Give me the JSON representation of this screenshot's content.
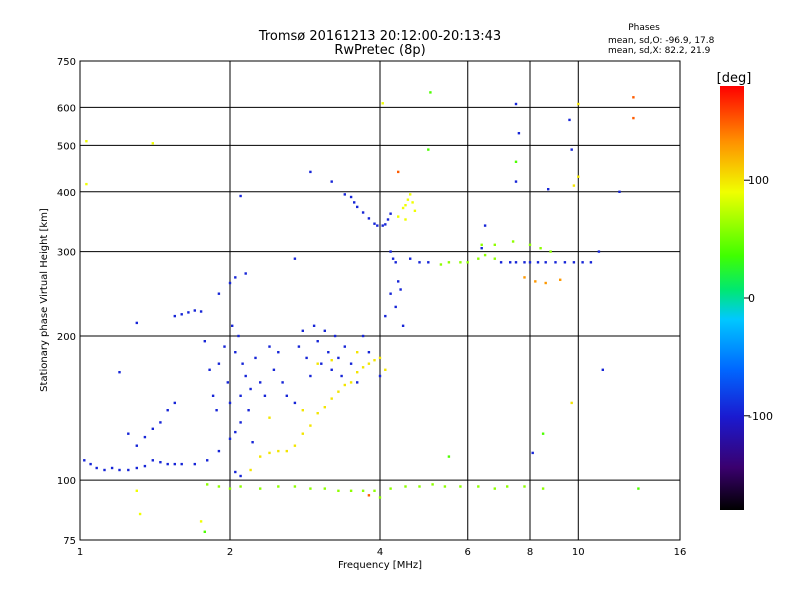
{
  "header": {
    "title_line1": "Tromsø 20161213 20:12:00-20:13:43",
    "title_line2": "RwPretec (8p)"
  },
  "stats": {
    "heading": "Phases",
    "line_o": "mean, sd,O: -96.9, 17.8",
    "line_x": "mean, sd,X:  82.2, 21.9"
  },
  "chart_data": {
    "type": "scatter",
    "xlabel": "Frequency [MHz]",
    "ylabel": "Stationary phase Virtual Height [km]",
    "x_scale": "log",
    "y_scale": "log",
    "xlim": [
      1,
      16
    ],
    "ylim": [
      75,
      750
    ],
    "grid": true,
    "x_ticks": [
      {
        "v": 1,
        "label": "1"
      },
      {
        "v": 2,
        "label": "2"
      },
      {
        "v": 4,
        "label": "4"
      },
      {
        "v": 6,
        "label": "6"
      },
      {
        "v": 8,
        "label": "8"
      },
      {
        "v": 10,
        "label": "10"
      },
      {
        "v": 16,
        "label": "16"
      }
    ],
    "y_ticks": [
      {
        "v": 75,
        "label": "75"
      },
      {
        "v": 100,
        "label": "100"
      },
      {
        "v": 200,
        "label": "200"
      },
      {
        "v": 300,
        "label": "300"
      },
      {
        "v": 400,
        "label": "400"
      },
      {
        "v": 500,
        "label": "500"
      },
      {
        "v": 600,
        "label": "600"
      },
      {
        "v": 750,
        "label": "750"
      }
    ],
    "colorbar": {
      "label": "[deg]",
      "range": [
        -180,
        180
      ],
      "ticks": [
        {
          "v": 100,
          "label": "100"
        },
        {
          "v": 0,
          "label": "0"
        },
        {
          "v": -100,
          "label": "-100"
        }
      ]
    },
    "series": [
      {
        "points": [
          [
            1.02,
            110,
            -95
          ],
          [
            1.05,
            108,
            -95
          ],
          [
            1.08,
            106,
            -95
          ],
          [
            1.12,
            105,
            -95
          ],
          [
            1.16,
            106,
            -95
          ],
          [
            1.2,
            105,
            -95
          ],
          [
            1.25,
            105,
            -95
          ],
          [
            1.3,
            106,
            -95
          ],
          [
            1.35,
            107,
            -95
          ],
          [
            1.4,
            110,
            -95
          ],
          [
            1.45,
            109,
            -95
          ],
          [
            1.5,
            108,
            -95
          ],
          [
            1.55,
            108,
            -95
          ],
          [
            1.6,
            108,
            -95
          ],
          [
            1.7,
            108,
            -95
          ],
          [
            1.8,
            110,
            -95
          ],
          [
            1.9,
            115,
            -95
          ],
          [
            2.0,
            122,
            -95
          ],
          [
            2.05,
            126,
            -95
          ],
          [
            2.1,
            132,
            -95
          ],
          [
            1.3,
            118,
            -95
          ],
          [
            1.35,
            123,
            -95
          ],
          [
            1.4,
            128,
            -95
          ],
          [
            1.45,
            132,
            -95
          ],
          [
            1.5,
            140,
            -95
          ],
          [
            1.25,
            125,
            -95
          ],
          [
            1.55,
            145,
            -95
          ]
        ]
      },
      {
        "points": [
          [
            1.55,
            220,
            -95
          ],
          [
            1.6,
            222,
            -95
          ],
          [
            1.65,
            224,
            -95
          ],
          [
            1.7,
            226,
            -95
          ],
          [
            1.75,
            225,
            -95
          ],
          [
            1.3,
            213,
            -95
          ],
          [
            1.9,
            245,
            -95
          ],
          [
            2.0,
            258,
            -95
          ],
          [
            2.05,
            265,
            -95
          ],
          [
            2.15,
            270,
            -95
          ],
          [
            2.1,
            392,
            -95
          ],
          [
            2.7,
            290,
            -95
          ]
        ]
      },
      {
        "points": [
          [
            1.78,
            195,
            -95
          ],
          [
            1.82,
            170,
            -95
          ],
          [
            1.85,
            150,
            -95
          ],
          [
            1.88,
            140,
            -95
          ],
          [
            1.9,
            175,
            -95
          ],
          [
            1.95,
            190,
            -95
          ],
          [
            1.98,
            160,
            -95
          ],
          [
            2.0,
            145,
            -95
          ],
          [
            2.02,
            210,
            -95
          ],
          [
            2.05,
            185,
            -95
          ],
          [
            2.08,
            200,
            -95
          ],
          [
            2.1,
            150,
            -95
          ],
          [
            2.12,
            175,
            -95
          ],
          [
            2.15,
            165,
            -95
          ],
          [
            2.18,
            140,
            -95
          ],
          [
            2.2,
            155,
            -95
          ],
          [
            2.22,
            120,
            -95
          ],
          [
            2.25,
            180,
            -95
          ],
          [
            2.3,
            160,
            -95
          ],
          [
            2.35,
            150,
            -95
          ],
          [
            2.4,
            190,
            -95
          ],
          [
            2.45,
            170,
            -95
          ],
          [
            2.5,
            185,
            -95
          ],
          [
            2.55,
            160,
            -95
          ],
          [
            2.6,
            150,
            -95
          ],
          [
            2.7,
            145,
            -95
          ],
          [
            2.75,
            190,
            -95
          ],
          [
            2.8,
            205,
            -95
          ],
          [
            2.85,
            180,
            -95
          ],
          [
            2.9,
            165,
            -95
          ],
          [
            2.95,
            210,
            -95
          ],
          [
            3.0,
            195,
            -95
          ],
          [
            3.05,
            175,
            -95
          ],
          [
            3.1,
            205,
            -95
          ],
          [
            3.15,
            185,
            -95
          ],
          [
            3.2,
            170,
            -95
          ],
          [
            3.25,
            200,
            -95
          ],
          [
            3.3,
            180,
            -95
          ],
          [
            3.35,
            165,
            -95
          ],
          [
            3.4,
            190,
            -95
          ],
          [
            3.5,
            175,
            -95
          ],
          [
            3.6,
            160,
            -95
          ],
          [
            3.7,
            200,
            -95
          ],
          [
            3.8,
            185,
            -95
          ],
          [
            4.0,
            165,
            -95
          ],
          [
            4.1,
            220,
            -95
          ],
          [
            4.2,
            245,
            -95
          ],
          [
            4.3,
            230,
            -95
          ],
          [
            4.35,
            260,
            -95
          ],
          [
            4.4,
            250,
            -95
          ],
          [
            4.45,
            210,
            -95
          ]
        ]
      },
      {
        "points": [
          [
            2.3,
            112,
            100
          ],
          [
            2.4,
            114,
            100
          ],
          [
            2.5,
            115,
            100
          ],
          [
            2.6,
            115,
            100
          ],
          [
            2.7,
            118,
            100
          ],
          [
            2.8,
            125,
            100
          ],
          [
            2.9,
            130,
            100
          ],
          [
            3.0,
            138,
            100
          ],
          [
            3.1,
            142,
            100
          ],
          [
            3.2,
            148,
            100
          ],
          [
            3.3,
            153,
            100
          ],
          [
            3.4,
            158,
            100
          ],
          [
            3.5,
            160,
            100
          ],
          [
            3.6,
            168,
            100
          ],
          [
            3.7,
            172,
            100
          ],
          [
            3.8,
            175,
            100
          ],
          [
            3.9,
            178,
            100
          ],
          [
            4.0,
            180,
            100
          ],
          [
            4.1,
            170,
            100
          ],
          [
            2.2,
            105,
            100
          ],
          [
            2.4,
            135,
            100
          ],
          [
            2.8,
            140,
            100
          ],
          [
            3.0,
            175,
            100
          ],
          [
            3.6,
            185,
            100
          ],
          [
            3.2,
            178,
            100
          ]
        ]
      },
      {
        "points": [
          [
            2.9,
            440,
            -95
          ],
          [
            3.2,
            420,
            -95
          ],
          [
            3.4,
            395,
            -95
          ],
          [
            3.5,
            390,
            -95
          ],
          [
            3.55,
            380,
            -95
          ],
          [
            3.6,
            372,
            -95
          ],
          [
            3.7,
            362,
            -95
          ],
          [
            3.8,
            352,
            -95
          ],
          [
            3.9,
            343,
            -95
          ],
          [
            3.95,
            340,
            -95
          ],
          [
            4.05,
            340,
            -95
          ],
          [
            4.1,
            342,
            -95
          ],
          [
            4.15,
            350,
            -95
          ],
          [
            4.2,
            360,
            -95
          ]
        ]
      },
      {
        "points": [
          [
            4.35,
            355,
            90
          ],
          [
            4.45,
            370,
            90
          ],
          [
            4.5,
            375,
            90
          ],
          [
            4.55,
            385,
            90
          ],
          [
            4.6,
            395,
            90
          ],
          [
            4.65,
            380,
            90
          ],
          [
            4.7,
            365,
            90
          ],
          [
            4.5,
            350,
            90
          ]
        ]
      },
      {
        "points": [
          [
            4.2,
            300,
            -95
          ],
          [
            4.25,
            290,
            -95
          ],
          [
            4.3,
            285,
            -95
          ],
          [
            4.6,
            290,
            -95
          ],
          [
            4.8,
            285,
            -95
          ],
          [
            5.0,
            285,
            -95
          ],
          [
            5.3,
            282,
            60
          ],
          [
            5.5,
            285,
            60
          ],
          [
            5.8,
            285,
            60
          ],
          [
            6.0,
            285,
            60
          ],
          [
            6.3,
            290,
            60
          ],
          [
            6.5,
            295,
            60
          ],
          [
            6.8,
            290,
            60
          ],
          [
            7.0,
            285,
            -95
          ],
          [
            7.3,
            285,
            -95
          ],
          [
            7.5,
            285,
            -95
          ],
          [
            7.8,
            285,
            -95
          ],
          [
            8.0,
            285,
            -95
          ],
          [
            8.3,
            285,
            -95
          ],
          [
            8.6,
            285,
            -95
          ],
          [
            9.0,
            285,
            -95
          ],
          [
            9.4,
            285,
            -95
          ],
          [
            9.8,
            285,
            -95
          ],
          [
            10.2,
            285,
            -95
          ],
          [
            10.6,
            285,
            -95
          ],
          [
            11.0,
            300,
            -95
          ],
          [
            6.4,
            310,
            60
          ],
          [
            6.8,
            310,
            60
          ],
          [
            7.4,
            315,
            60
          ],
          [
            8.0,
            310,
            60
          ],
          [
            8.4,
            305,
            60
          ],
          [
            8.8,
            300,
            60
          ],
          [
            7.8,
            265,
            130
          ],
          [
            8.2,
            260,
            130
          ],
          [
            8.6,
            258,
            130
          ],
          [
            9.2,
            262,
            130
          ]
        ]
      },
      {
        "points": [
          [
            1.8,
            98,
            60
          ],
          [
            1.9,
            97,
            60
          ],
          [
            2.0,
            96,
            60
          ],
          [
            2.1,
            97,
            60
          ],
          [
            2.3,
            96,
            60
          ],
          [
            2.5,
            97,
            60
          ],
          [
            2.7,
            97,
            60
          ],
          [
            2.9,
            96,
            60
          ],
          [
            3.1,
            96,
            60
          ],
          [
            3.3,
            95,
            60
          ],
          [
            3.5,
            95,
            60
          ],
          [
            3.7,
            95,
            60
          ],
          [
            3.9,
            95,
            60
          ],
          [
            4.2,
            96,
            60
          ],
          [
            4.5,
            97,
            60
          ],
          [
            4.8,
            97,
            60
          ],
          [
            5.1,
            98,
            60
          ],
          [
            5.4,
            97,
            60
          ],
          [
            5.8,
            97,
            60
          ],
          [
            6.3,
            97,
            60
          ],
          [
            6.8,
            96,
            60
          ],
          [
            7.2,
            97,
            60
          ],
          [
            7.8,
            97,
            60
          ],
          [
            8.5,
            96,
            60
          ],
          [
            2.05,
            104,
            -95
          ],
          [
            2.1,
            102,
            -95
          ],
          [
            4.0,
            92,
            60
          ],
          [
            3.8,
            93,
            150
          ]
        ]
      },
      {
        "points": [
          [
            1.03,
            510,
            90
          ],
          [
            1.4,
            505,
            90
          ],
          [
            1.03,
            415,
            90
          ],
          [
            4.05,
            612,
            90
          ],
          [
            4.35,
            440,
            150
          ],
          [
            5.05,
            645,
            40
          ],
          [
            5.0,
            490,
            40
          ],
          [
            6.4,
            305,
            -95
          ],
          [
            6.5,
            340,
            -95
          ],
          [
            7.5,
            610,
            -95
          ],
          [
            7.6,
            530,
            -95
          ],
          [
            7.5,
            462,
            40
          ],
          [
            7.5,
            420,
            -95
          ],
          [
            8.7,
            405,
            -95
          ],
          [
            9.6,
            565,
            -95
          ],
          [
            9.7,
            490,
            -95
          ],
          [
            9.8,
            412,
            100
          ],
          [
            10.0,
            430,
            100
          ],
          [
            10.0,
            610,
            100
          ],
          [
            12.9,
            630,
            150
          ],
          [
            12.9,
            570,
            150
          ],
          [
            12.1,
            400,
            -95
          ],
          [
            11.2,
            170,
            -95
          ],
          [
            9.7,
            145,
            100
          ],
          [
            13.2,
            96,
            40
          ],
          [
            8.5,
            125,
            40
          ],
          [
            8.1,
            114,
            -95
          ],
          [
            5.5,
            112,
            40
          ],
          [
            1.32,
            85,
            90
          ],
          [
            1.78,
            78,
            40
          ],
          [
            1.75,
            82,
            90
          ],
          [
            1.3,
            95,
            90
          ],
          [
            1.2,
            168,
            -95
          ]
        ]
      }
    ]
  }
}
